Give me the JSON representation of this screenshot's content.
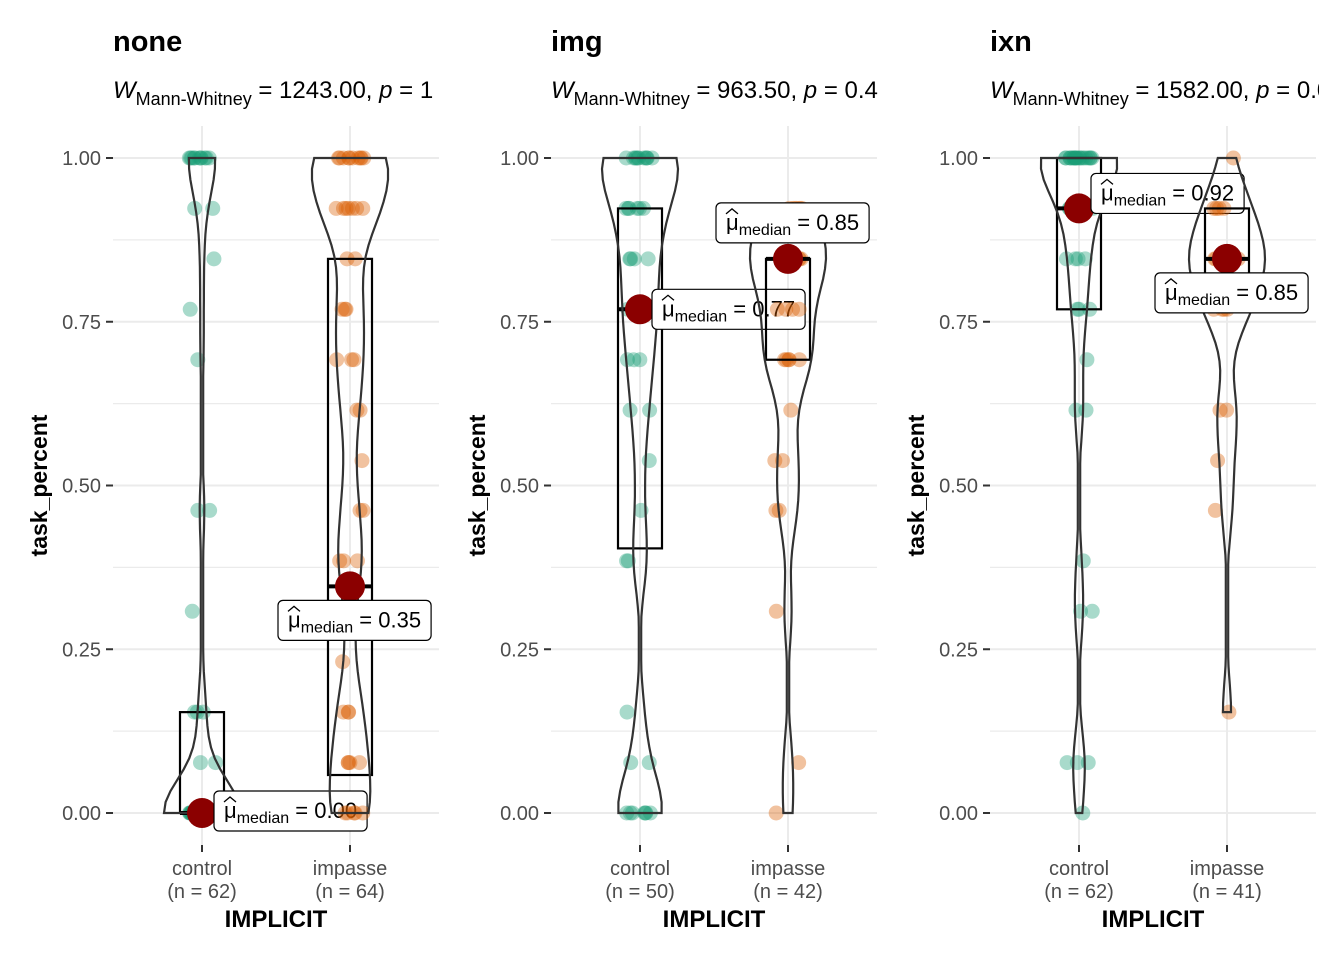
{
  "colors": {
    "control": "#1b9e77",
    "impasse": "#d95f02",
    "median_point": "#8b0000",
    "grid": "#ebebeb",
    "text": "#4d4d4d",
    "title": "#000000"
  },
  "chart_data": [
    {
      "type": "box-violin-strip",
      "title": "none",
      "subtitle": {
        "stat_symbol": "W",
        "stat_sub": "Mann-Whitney",
        "stat_value": " = 1243.00, ",
        "p_symbol": "p",
        "p_value": " = 1"
      },
      "xlabel": "IMPLICIT",
      "ylabel": "task_percent",
      "ylim": [
        0,
        1
      ],
      "yticks": [
        "0.00",
        "0.25",
        "0.50",
        "0.75",
        "1.00"
      ],
      "grid": true,
      "groups": [
        {
          "name": "control",
          "n_label": "(n = 62)",
          "box": {
            "q1": 0.0,
            "median": 0.0,
            "q3": 0.154
          },
          "median_label": {
            "prefix": "μ",
            "sub": "median",
            "value": " = 0.00"
          },
          "points": [
            0,
            0,
            0,
            0,
            0,
            0,
            0,
            0,
            0,
            0,
            0,
            0,
            0,
            0,
            0,
            0,
            0,
            0,
            0,
            0,
            0,
            0,
            0,
            0,
            0,
            0,
            0,
            0,
            0,
            0,
            0,
            0,
            0,
            0.077,
            0.077,
            0.154,
            0.154,
            0.154,
            0.308,
            0.462,
            0.462,
            0.692,
            0.769,
            0.846,
            0.923,
            0.923,
            1,
            1,
            1,
            1,
            1,
            1,
            1,
            1,
            1,
            1,
            1
          ]
        },
        {
          "name": "impasse",
          "n_label": "(n = 64)",
          "box": {
            "q1": 0.058,
            "median": 0.346,
            "q3": 0.846
          },
          "median_label": {
            "prefix": "μ",
            "sub": "median",
            "value": " = 0.35"
          },
          "points": [
            0,
            0,
            0,
            0,
            0,
            0.077,
            0.077,
            0.077,
            0.077,
            0.154,
            0.154,
            0.154,
            0.231,
            0.308,
            0.385,
            0.385,
            0.385,
            0.462,
            0.462,
            0.538,
            0.615,
            0.615,
            0.692,
            0.692,
            0.692,
            0.769,
            0.769,
            0.769,
            0.846,
            0.846,
            0.923,
            0.923,
            0.923,
            0.923,
            0.923,
            0.923,
            0.923,
            1,
            1,
            1,
            1,
            1,
            1,
            1,
            1,
            1,
            1
          ]
        }
      ]
    },
    {
      "type": "box-violin-strip",
      "title": "img",
      "subtitle": {
        "stat_symbol": "W",
        "stat_sub": "Mann-Whitney",
        "stat_value": " = 963.50, ",
        "p_symbol": "p",
        "p_value": " = 0.4"
      },
      "xlabel": "IMPLICIT",
      "ylabel": "task_percent",
      "ylim": [
        0,
        1
      ],
      "yticks": [
        "0.00",
        "0.25",
        "0.50",
        "0.75",
        "1.00"
      ],
      "grid": true,
      "groups": [
        {
          "name": "control",
          "n_label": "(n = 50)",
          "box": {
            "q1": 0.404,
            "median": 0.769,
            "q3": 0.923
          },
          "median_label": {
            "prefix": "μ",
            "sub": "median",
            "value": " = 0.77"
          },
          "points": [
            0,
            0,
            0,
            0,
            0,
            0,
            0,
            0.077,
            0.077,
            0.154,
            0.385,
            0.385,
            0.462,
            0.538,
            0.615,
            0.615,
            0.692,
            0.692,
            0.692,
            0.769,
            0.769,
            0.769,
            0.769,
            0.846,
            0.846,
            0.846,
            0.846,
            0.923,
            0.923,
            0.923,
            0.923,
            0.923,
            0.923,
            1,
            1,
            1,
            1,
            1,
            1,
            1,
            1,
            1,
            1,
            1
          ]
        },
        {
          "name": "impasse",
          "n_label": "(n = 42)",
          "box": {
            "q1": 0.692,
            "median": 0.846,
            "q3": 0.846
          },
          "median_label": {
            "prefix": "μ",
            "sub": "median",
            "value": " = 0.85"
          },
          "points": [
            0,
            0.077,
            0.308,
            0.462,
            0.462,
            0.538,
            0.538,
            0.615,
            0.692,
            0.692,
            0.692,
            0.692,
            0.692,
            0.769,
            0.769,
            0.769,
            0.769,
            0.846,
            0.846,
            0.846,
            0.846,
            0.846,
            0.846,
            0.846,
            0.846,
            0.923,
            0.923,
            0.923,
            0.923,
            0.923
          ]
        }
      ]
    },
    {
      "type": "box-violin-strip",
      "title": "ixn",
      "subtitle": {
        "stat_symbol": "W",
        "stat_sub": "Mann-Whitney",
        "stat_value": " = 1582.00, ",
        "p_symbol": "p",
        "p_value": " = 0.0"
      },
      "xlabel": "IMPLICIT",
      "ylabel": "task_percent",
      "ylim": [
        0,
        1
      ],
      "yticks": [
        "0.00",
        "0.25",
        "0.50",
        "0.75",
        "1.00"
      ],
      "grid": true,
      "groups": [
        {
          "name": "control",
          "n_label": "(n = 62)",
          "box": {
            "q1": 0.769,
            "median": 0.923,
            "q3": 1.0
          },
          "median_label": {
            "prefix": "μ",
            "sub": "median",
            "value": " = 0.92"
          },
          "points": [
            0,
            0.077,
            0.077,
            0.077,
            0.308,
            0.308,
            0.385,
            0.615,
            0.615,
            0.692,
            0.769,
            0.769,
            0.769,
            0.846,
            0.846,
            0.846,
            0.846,
            0.923,
            0.923,
            0.923,
            0.923,
            0.923,
            0.923,
            1,
            1,
            1,
            1,
            1,
            1,
            1,
            1,
            1,
            1,
            1,
            1,
            1,
            1,
            1,
            1,
            1,
            1,
            1,
            1
          ]
        },
        {
          "name": "impasse",
          "n_label": "(n = 41)",
          "box": {
            "q1": 0.769,
            "median": 0.846,
            "q3": 0.923
          },
          "median_label": {
            "prefix": "μ",
            "sub": "median",
            "value": " = 0.85"
          },
          "points": [
            0.154,
            0.462,
            0.538,
            0.615,
            0.615,
            0.769,
            0.769,
            0.769,
            0.769,
            0.846,
            0.846,
            0.846,
            0.846,
            0.846,
            0.846,
            0.846,
            0.923,
            0.923,
            0.923,
            0.923,
            1
          ]
        }
      ]
    }
  ]
}
